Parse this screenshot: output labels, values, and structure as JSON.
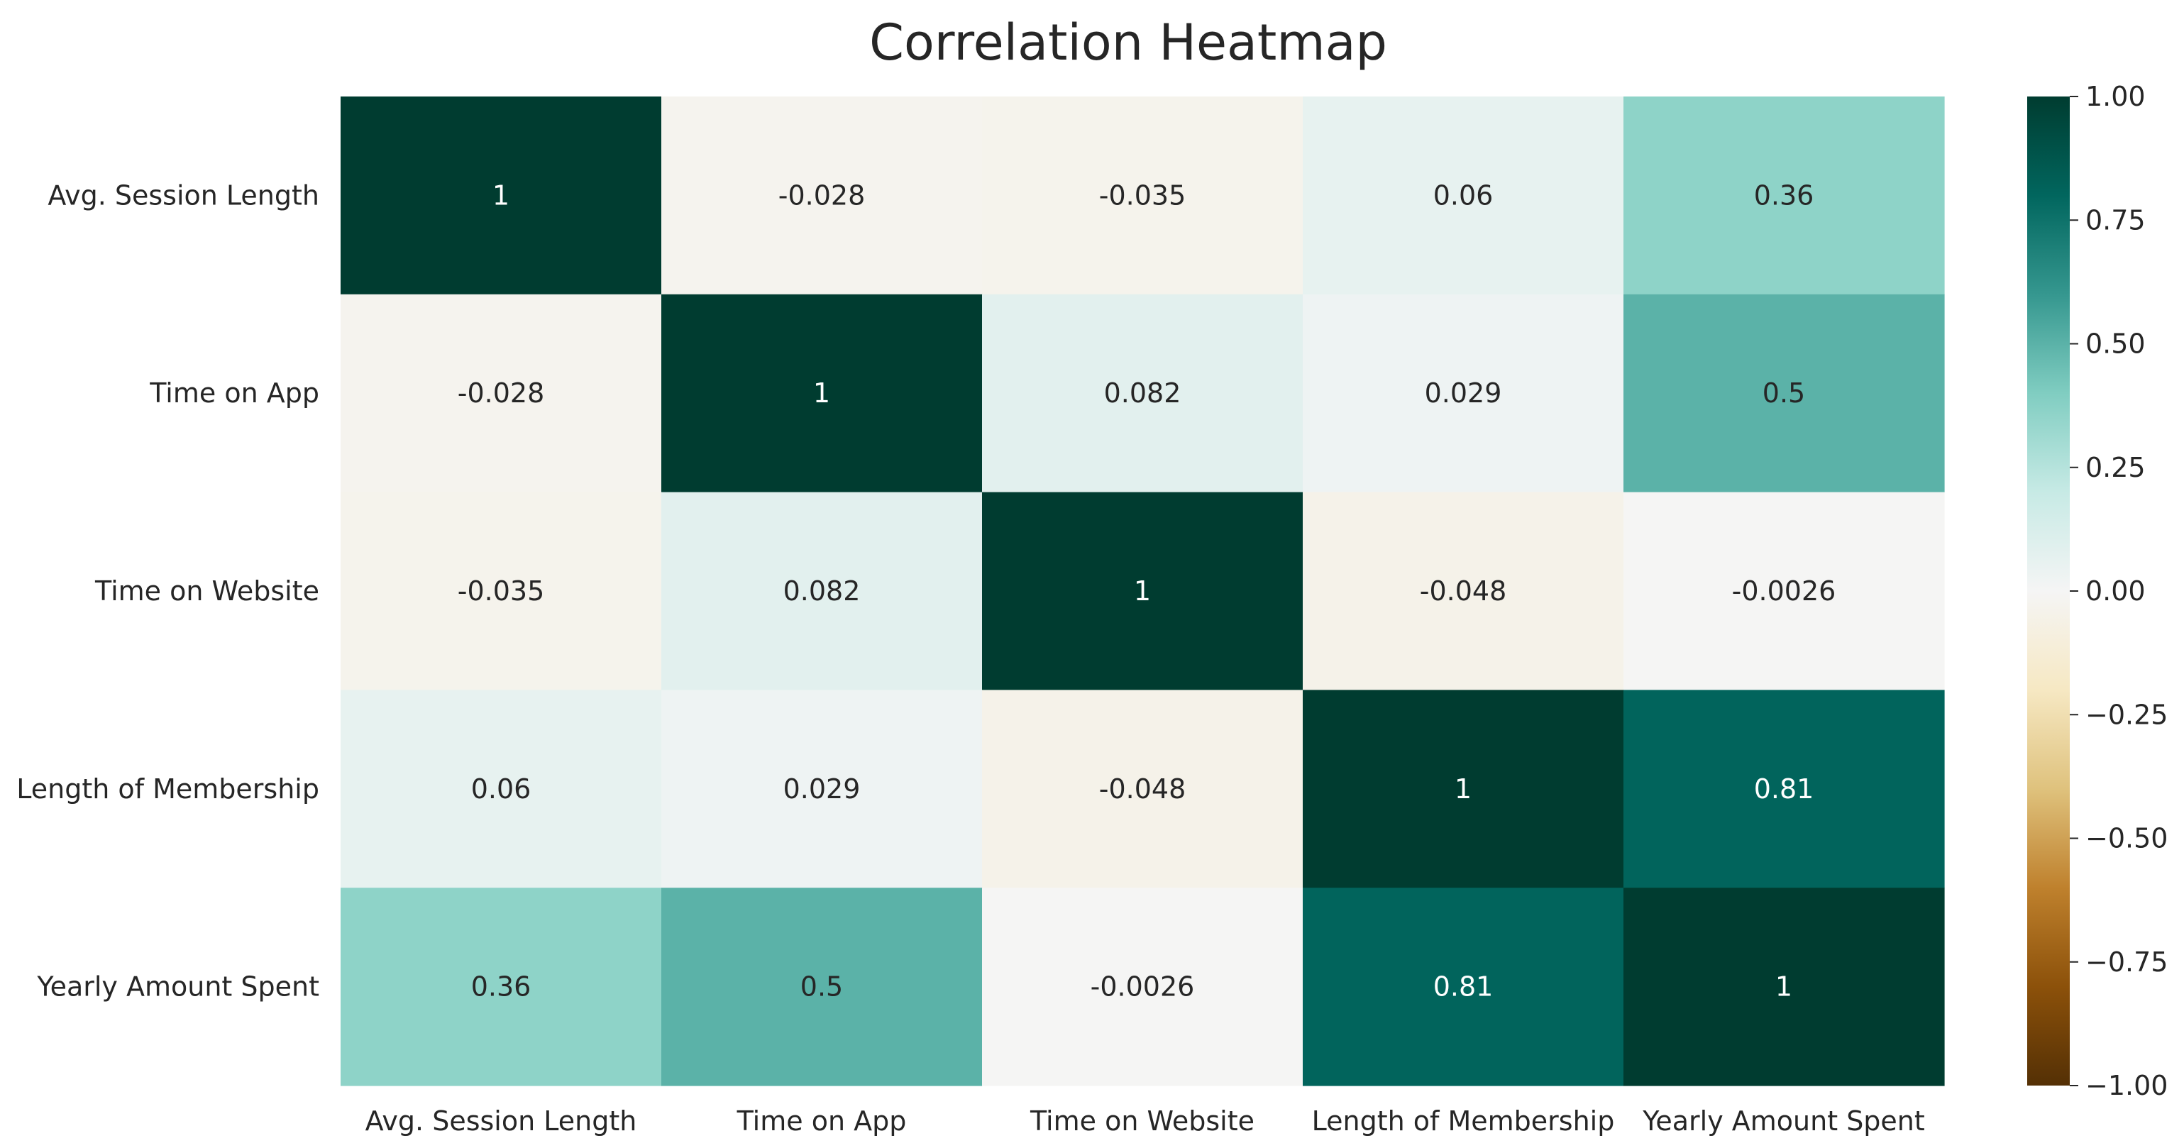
{
  "chart_data": {
    "type": "heatmap",
    "title": "Correlation Heatmap",
    "xlabel": "",
    "ylabel": "",
    "rows": [
      "Avg. Session Length",
      "Time on App",
      "Time on Website",
      "Length of Membership",
      "Yearly Amount Spent"
    ],
    "columns": [
      "Avg. Session Length",
      "Time on App",
      "Time on Website",
      "Length of Membership",
      "Yearly Amount Spent"
    ],
    "values": [
      [
        1,
        -0.028,
        -0.035,
        0.06,
        0.36
      ],
      [
        -0.028,
        1,
        0.082,
        0.029,
        0.5
      ],
      [
        -0.035,
        0.082,
        1,
        -0.048,
        -0.0026
      ],
      [
        0.06,
        0.029,
        -0.048,
        1,
        0.81
      ],
      [
        0.36,
        0.5,
        -0.0026,
        0.81,
        1
      ]
    ],
    "annotations": [
      [
        "1",
        "-0.028",
        "-0.035",
        "0.06",
        "0.36"
      ],
      [
        "-0.028",
        "1",
        "0.082",
        "0.029",
        "0.5"
      ],
      [
        "-0.035",
        "0.082",
        "1",
        "-0.048",
        "-0.0026"
      ],
      [
        "0.06",
        "0.029",
        "-0.048",
        "1",
        "0.81"
      ],
      [
        "0.36",
        "0.5",
        "-0.0026",
        "0.81",
        "1"
      ]
    ],
    "colormap": "BrBG",
    "vmin": -1,
    "vmax": 1,
    "colorbar": {
      "ticks": [
        1.0,
        0.75,
        0.5,
        0.25,
        0.0,
        -0.25,
        -0.5,
        -0.75,
        -1.0
      ],
      "tick_labels": [
        "1.00",
        "0.75",
        "0.50",
        "0.25",
        "0.00",
        "−0.25",
        "−0.50",
        "−0.75",
        "−1.00"
      ],
      "position": "right"
    },
    "grid": false
  }
}
